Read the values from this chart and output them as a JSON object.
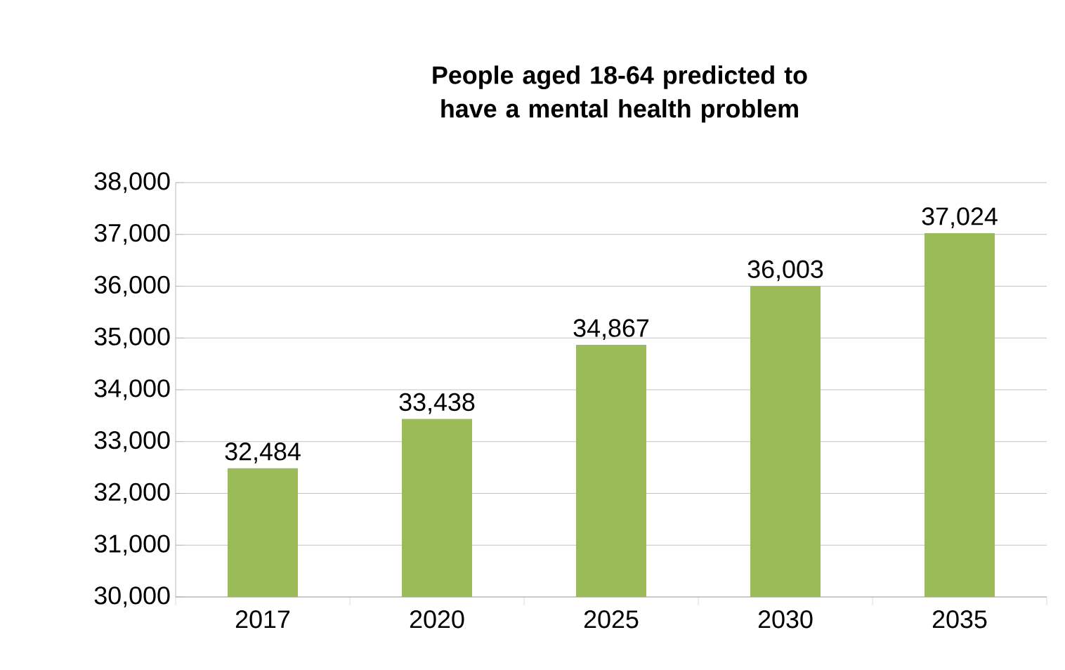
{
  "chart_data": {
    "type": "bar",
    "title": "People aged 18-64 predicted to have a mental health problem",
    "categories": [
      "2017",
      "2020",
      "2025",
      "2030",
      "2035"
    ],
    "values": [
      32484,
      33438,
      34867,
      36003,
      37024
    ],
    "color": "#9bbb59",
    "ylim": [
      30000,
      38000
    ],
    "yticks": [
      {
        "value": 30000,
        "label": "30,000"
      },
      {
        "value": 31000,
        "label": "31,000"
      },
      {
        "value": 32000,
        "label": "32,000"
      },
      {
        "value": 33000,
        "label": "33,000"
      },
      {
        "value": 34000,
        "label": "34,000"
      },
      {
        "value": 35000,
        "label": "35,000"
      },
      {
        "value": 36000,
        "label": "36,000"
      },
      {
        "value": 37000,
        "label": "37,000"
      },
      {
        "value": 38000,
        "label": "38,000"
      }
    ],
    "value_labels": [
      "32,484",
      "33,438",
      "34,867",
      "36,003",
      "37,024"
    ],
    "grid": "y"
  }
}
